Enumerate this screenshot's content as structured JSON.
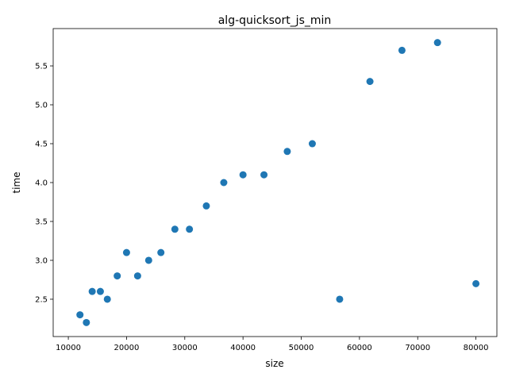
{
  "chart_data": {
    "type": "scatter",
    "title": "alg-quicksort_js_min",
    "xlabel": "size",
    "ylabel": "time",
    "xlim": [
      7400,
      83600
    ],
    "ylim": [
      2.02,
      5.98
    ],
    "x_ticks": [
      10000,
      20000,
      30000,
      40000,
      50000,
      60000,
      70000,
      80000
    ],
    "y_ticks": [
      2.5,
      3.0,
      3.5,
      4.0,
      4.5,
      5.0,
      5.5
    ],
    "grid": false,
    "marker_color": "#1f77b4",
    "series": [
      {
        "x": [
          12000,
          13100,
          14100,
          15500,
          16700,
          18400,
          20000,
          21900,
          23800,
          25900,
          28300,
          30800,
          33700,
          36700,
          40000,
          43600,
          47600,
          51900,
          56600,
          61800,
          67300,
          73400,
          80000
        ],
        "y": [
          2.3,
          2.2,
          2.6,
          2.6,
          2.5,
          2.8,
          3.1,
          2.8,
          3.0,
          3.1,
          3.4,
          3.4,
          3.7,
          4.0,
          4.1,
          4.1,
          4.4,
          4.5,
          2.5,
          5.3,
          5.7,
          5.8,
          2.7
        ]
      }
    ]
  }
}
